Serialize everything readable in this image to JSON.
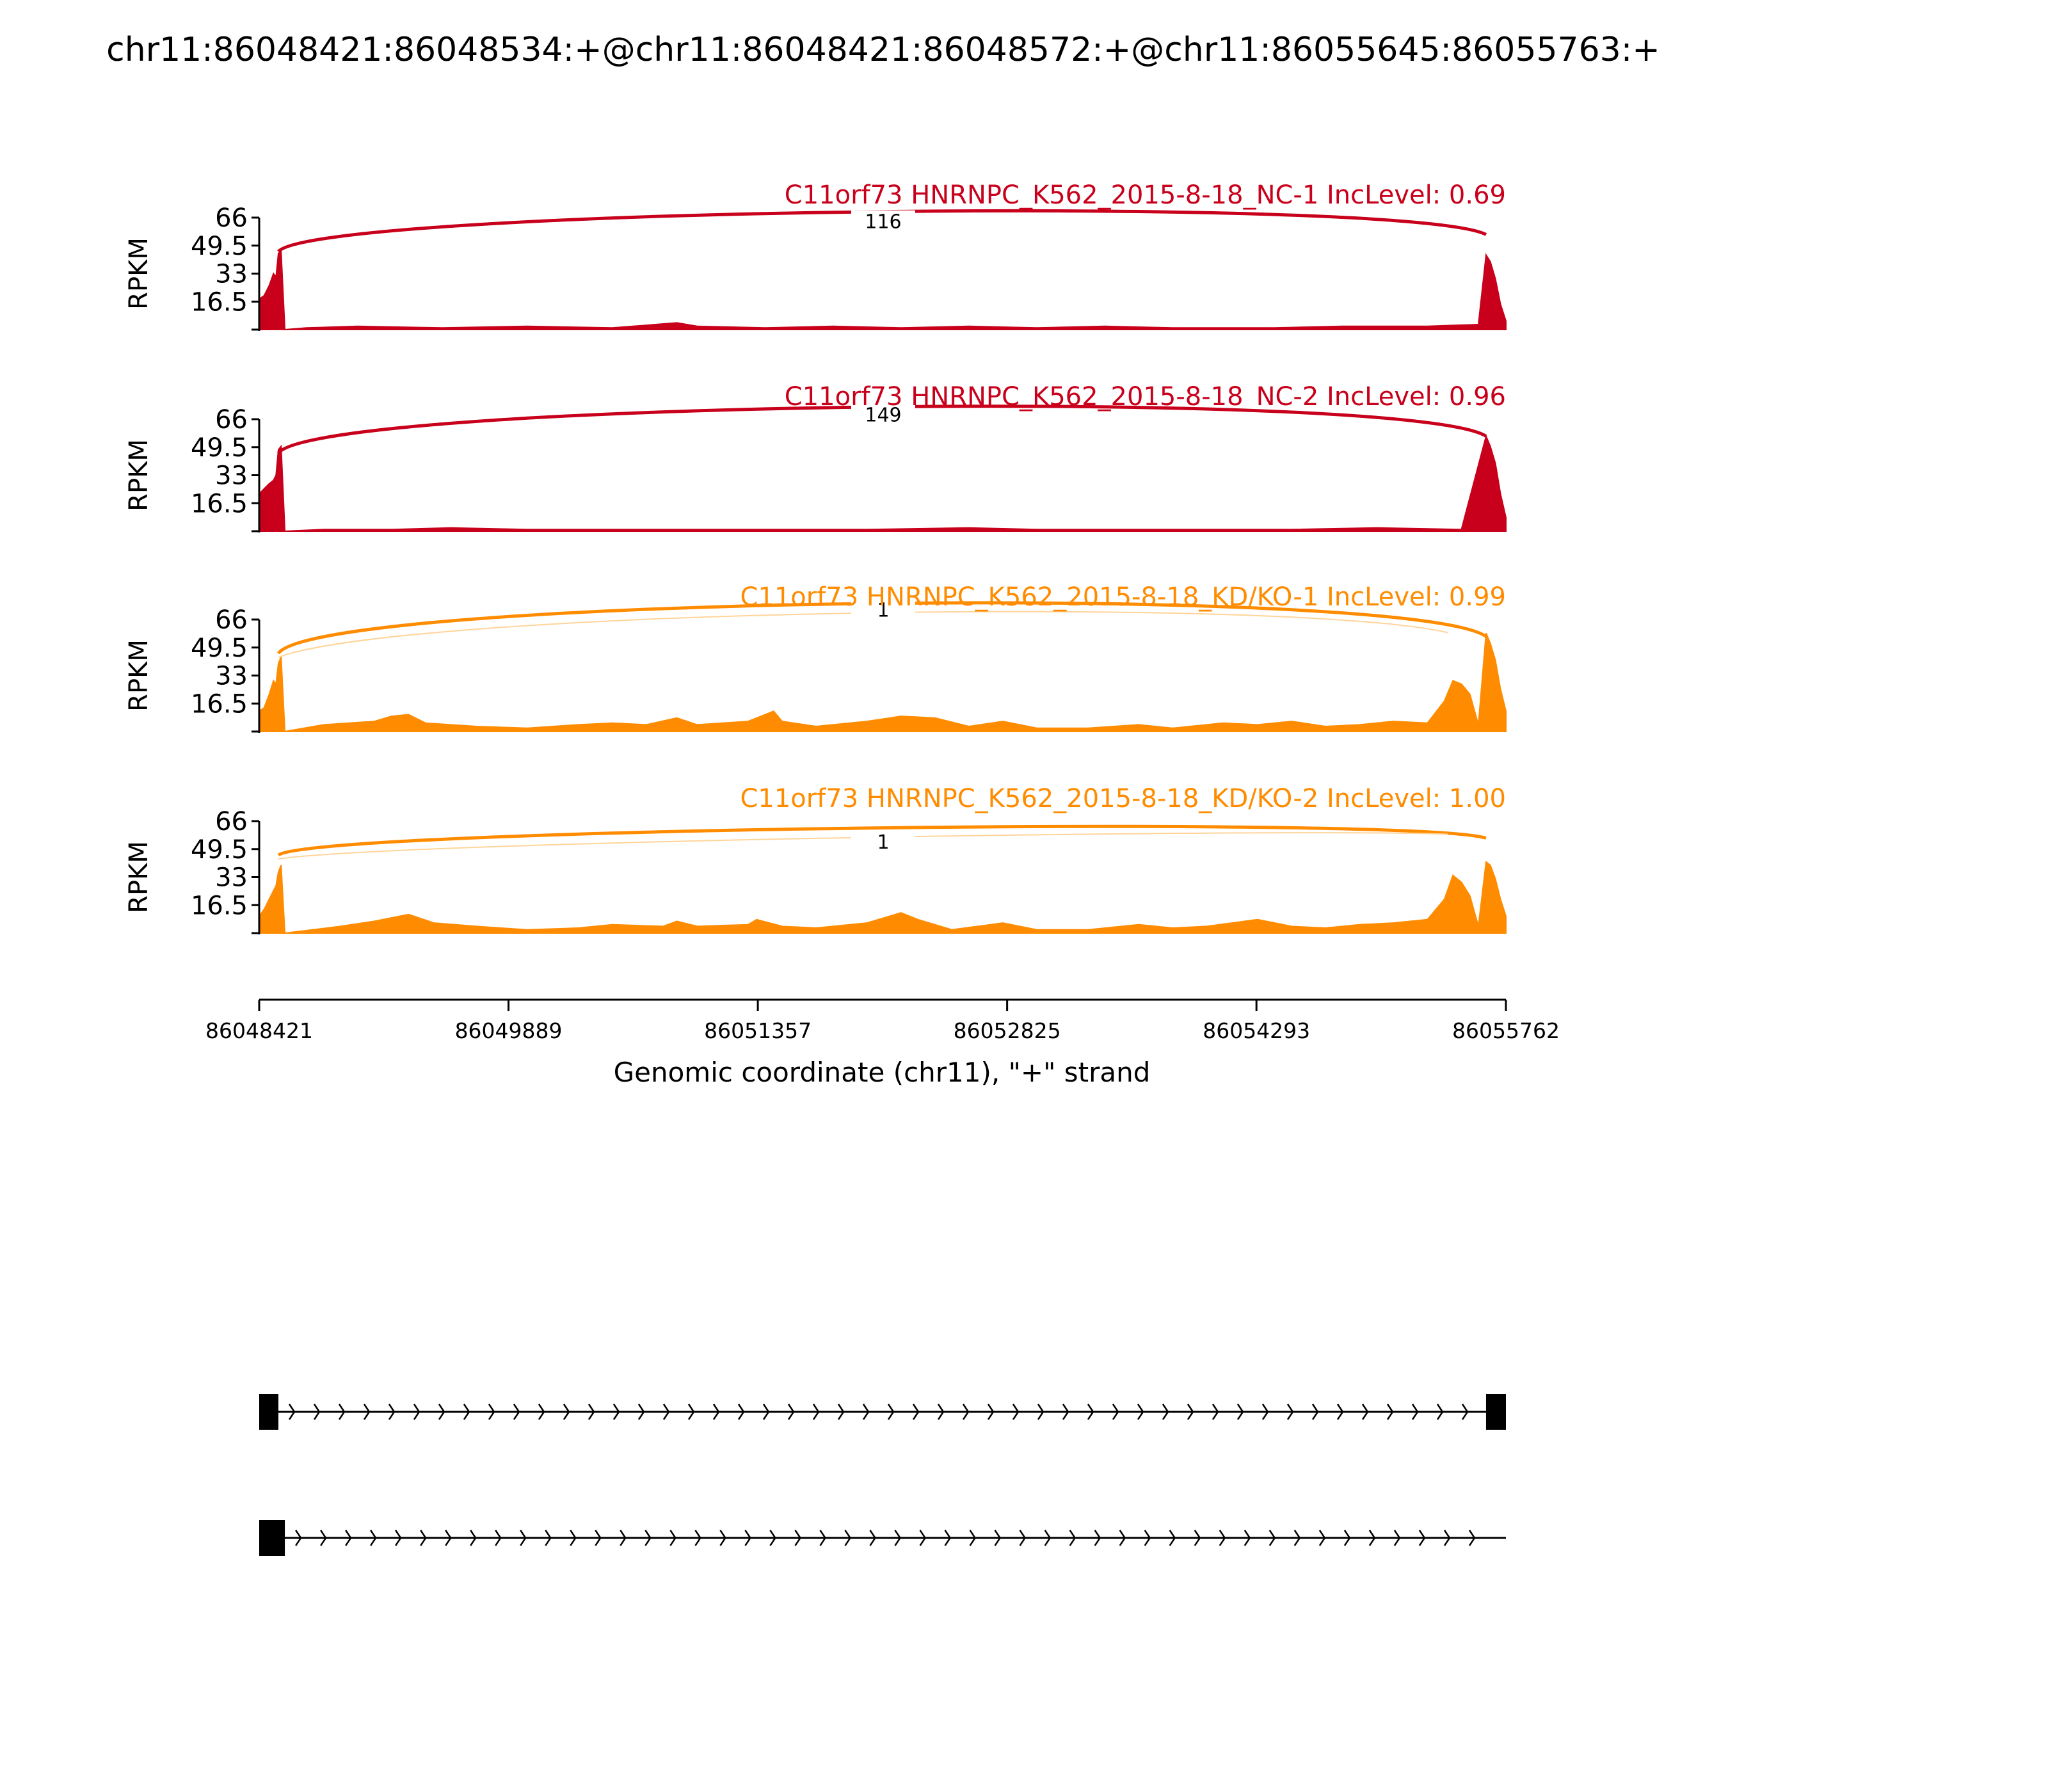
{
  "chart_data": {
    "type": "area",
    "title": "chr11:86048421:86048534:+@chr11:86048421:86048572:+@chr11:86055645:86055763:+",
    "xlabel": "Genomic coordinate (chr11), \"+\" strand",
    "xlim": [
      86048421,
      86055762
    ],
    "xticks": [
      "86048421",
      "86049889",
      "86051357",
      "86052825",
      "86054293",
      "86055762"
    ],
    "ylabel": "RPKM",
    "ylim": [
      0,
      66
    ],
    "yticks": [
      "66",
      "49.5",
      "33",
      "16.5"
    ],
    "colors": {
      "NC": "#c8001b",
      "KD": "#ff8c00",
      "gene": "#000000"
    },
    "panels": [
      {
        "title": "C11orf73 HNRNPC_K562_2015-8-18_NC-1 IncLevel: 0.69",
        "color": "#c8001b",
        "group": "NC",
        "junctions": [
          {
            "start": 86048534,
            "end": 86055645,
            "label": "116",
            "peak": 68
          }
        ],
        "coverage": [
          [
            86048421,
            18
          ],
          [
            86048450,
            20
          ],
          [
            86048480,
            26
          ],
          [
            86048505,
            33
          ],
          [
            86048520,
            31
          ],
          [
            86048534,
            45
          ],
          [
            86048550,
            46
          ],
          [
            86048572,
            0
          ],
          [
            86048700,
            1
          ],
          [
            86049000,
            2
          ],
          [
            86049500,
            1
          ],
          [
            86050000,
            2
          ],
          [
            86050500,
            1
          ],
          [
            86050880,
            4
          ],
          [
            86051000,
            2
          ],
          [
            86051400,
            1
          ],
          [
            86051800,
            2
          ],
          [
            86052200,
            1
          ],
          [
            86052600,
            2
          ],
          [
            86053000,
            1
          ],
          [
            86053400,
            2
          ],
          [
            86053800,
            1
          ],
          [
            86054400,
            1
          ],
          [
            86054800,
            2
          ],
          [
            86055300,
            2
          ],
          [
            86055600,
            3
          ],
          [
            86055645,
            44
          ],
          [
            86055670,
            40
          ],
          [
            86055700,
            30
          ],
          [
            86055730,
            15
          ],
          [
            86055762,
            5
          ]
        ]
      },
      {
        "title": "C11orf73 HNRNPC_K562_2015-8-18_NC-2 IncLevel: 0.96",
        "color": "#c8001b",
        "group": "NC",
        "junctions": [
          {
            "start": 86048534,
            "end": 86055645,
            "label": "149",
            "peak": 73
          }
        ],
        "coverage": [
          [
            86048421,
            22
          ],
          [
            86048450,
            25
          ],
          [
            86048480,
            28
          ],
          [
            86048505,
            30
          ],
          [
            86048520,
            33
          ],
          [
            86048534,
            48
          ],
          [
            86048550,
            50
          ],
          [
            86048572,
            0
          ],
          [
            86048800,
            1
          ],
          [
            86049200,
            1
          ],
          [
            86049550,
            2
          ],
          [
            86050000,
            1
          ],
          [
            86050500,
            1
          ],
          [
            86051000,
            1
          ],
          [
            86051500,
            1
          ],
          [
            86052000,
            1
          ],
          [
            86052600,
            2
          ],
          [
            86053000,
            1
          ],
          [
            86053500,
            1
          ],
          [
            86054000,
            1
          ],
          [
            86054500,
            1
          ],
          [
            86055000,
            2
          ],
          [
            86055500,
            1
          ],
          [
            86055645,
            56
          ],
          [
            86055670,
            50
          ],
          [
            86055700,
            40
          ],
          [
            86055730,
            22
          ],
          [
            86055762,
            8
          ]
        ]
      },
      {
        "title": "C11orf73 HNRNPC_K562_2015-8-18_KD/KO-1 IncLevel: 0.99",
        "color": "#ff8c00",
        "group": "KD",
        "junctions": [
          {
            "start": 86048534,
            "end": 86055645,
            "label": "1",
            "peak": 76
          }
        ],
        "coverage": [
          [
            86048421,
            12
          ],
          [
            86048450,
            14
          ],
          [
            86048480,
            22
          ],
          [
            86048505,
            30
          ],
          [
            86048520,
            28
          ],
          [
            86048534,
            40
          ],
          [
            86048550,
            44
          ],
          [
            86048572,
            0
          ],
          [
            86048800,
            4
          ],
          [
            86049100,
            6
          ],
          [
            86049200,
            9
          ],
          [
            86049300,
            10
          ],
          [
            86049400,
            5
          ],
          [
            86049700,
            3
          ],
          [
            86050000,
            2
          ],
          [
            86050300,
            4
          ],
          [
            86050500,
            5
          ],
          [
            86050700,
            4
          ],
          [
            86050880,
            8
          ],
          [
            86051000,
            4
          ],
          [
            86051300,
            6
          ],
          [
            86051400,
            10
          ],
          [
            86051450,
            12
          ],
          [
            86051500,
            6
          ],
          [
            86051700,
            3
          ],
          [
            86052000,
            6
          ],
          [
            86052200,
            9
          ],
          [
            86052400,
            8
          ],
          [
            86052600,
            3
          ],
          [
            86052800,
            6
          ],
          [
            86053000,
            2
          ],
          [
            86053300,
            2
          ],
          [
            86053600,
            4
          ],
          [
            86053800,
            2
          ],
          [
            86054100,
            5
          ],
          [
            86054300,
            4
          ],
          [
            86054500,
            6
          ],
          [
            86054700,
            3
          ],
          [
            86054900,
            4
          ],
          [
            86055100,
            6
          ],
          [
            86055300,
            5
          ],
          [
            86055400,
            18
          ],
          [
            86055450,
            30
          ],
          [
            86055500,
            28
          ],
          [
            86055550,
            22
          ],
          [
            86055600,
            4
          ],
          [
            86055645,
            58
          ],
          [
            86055670,
            52
          ],
          [
            86055700,
            42
          ],
          [
            86055730,
            25
          ],
          [
            86055762,
            12
          ]
        ]
      },
      {
        "title": "C11orf73 HNRNPC_K562_2015-8-18_KD/KO-2 IncLevel: 1.00",
        "color": "#ff8c00",
        "group": "KD",
        "junctions": [
          {
            "start": 86048534,
            "end": 86055645,
            "label": "1",
            "peak": 58
          }
        ],
        "coverage": [
          [
            86048421,
            10
          ],
          [
            86048450,
            14
          ],
          [
            86048480,
            20
          ],
          [
            86048505,
            25
          ],
          [
            86048520,
            28
          ],
          [
            86048534,
            36
          ],
          [
            86048550,
            40
          ],
          [
            86048572,
            0
          ],
          [
            86048900,
            4
          ],
          [
            86049100,
            7
          ],
          [
            86049300,
            11
          ],
          [
            86049450,
            6
          ],
          [
            86049700,
            4
          ],
          [
            86050000,
            2
          ],
          [
            86050300,
            3
          ],
          [
            86050500,
            5
          ],
          [
            86050800,
            4
          ],
          [
            86050880,
            7
          ],
          [
            86051000,
            4
          ],
          [
            86051300,
            5
          ],
          [
            86051350,
            8
          ],
          [
            86051500,
            4
          ],
          [
            86051700,
            3
          ],
          [
            86052000,
            6
          ],
          [
            86052200,
            12
          ],
          [
            86052300,
            8
          ],
          [
            86052500,
            2
          ],
          [
            86052800,
            6
          ],
          [
            86053000,
            2
          ],
          [
            86053300,
            2
          ],
          [
            86053600,
            5
          ],
          [
            86053800,
            3
          ],
          [
            86054000,
            4
          ],
          [
            86054300,
            8
          ],
          [
            86054500,
            4
          ],
          [
            86054700,
            3
          ],
          [
            86054900,
            5
          ],
          [
            86055100,
            6
          ],
          [
            86055300,
            8
          ],
          [
            86055400,
            20
          ],
          [
            86055450,
            34
          ],
          [
            86055500,
            30
          ],
          [
            86055550,
            22
          ],
          [
            86055600,
            4
          ],
          [
            86055645,
            42
          ],
          [
            86055670,
            40
          ],
          [
            86055700,
            32
          ],
          [
            86055730,
            20
          ],
          [
            86055762,
            10
          ]
        ]
      }
    ],
    "gene_models": [
      {
        "exons": [
          [
            86048421,
            86048534
          ],
          [
            86055645,
            86055763
          ]
        ],
        "intron_arrows": 48
      },
      {
        "exons": [
          [
            86048421,
            86048572
          ]
        ],
        "intron_arrows": 48
      }
    ]
  }
}
